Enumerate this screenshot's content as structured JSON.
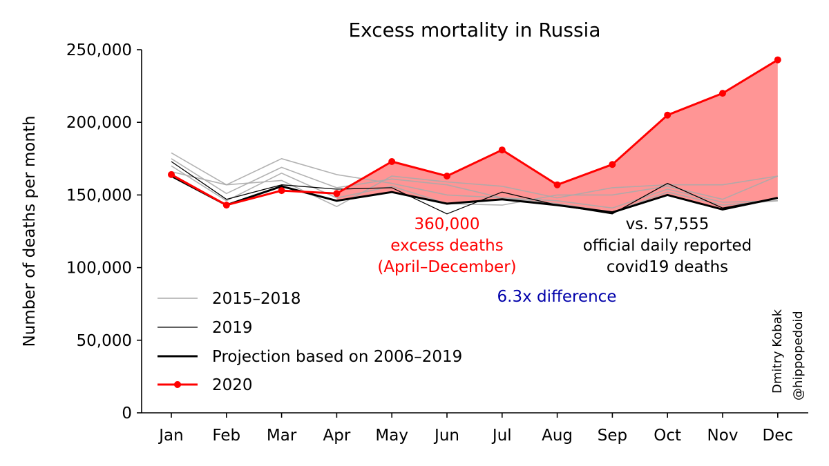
{
  "chart_data": {
    "type": "line",
    "title": "Excess mortality in Russia",
    "xlabel": "",
    "ylabel": "Number of deaths per month",
    "ylim": [
      0,
      250000
    ],
    "y_ticks": [
      0,
      50000,
      100000,
      150000,
      200000,
      250000
    ],
    "y_tick_labels": [
      "0",
      "50,000",
      "100,000",
      "150,000",
      "200,000",
      "250,000"
    ],
    "categories": [
      "Jan",
      "Feb",
      "Mar",
      "Apr",
      "May",
      "Jun",
      "Jul",
      "Aug",
      "Sep",
      "Oct",
      "Nov",
      "Dec"
    ],
    "grid": false,
    "legend_position": "lower-left",
    "legend": [
      "2015–2018",
      "2019",
      "Projection based on 2006–2019",
      "2020"
    ],
    "series": [
      {
        "name": "2015–2018",
        "style": "gray-thin",
        "values": [
          179000,
          157000,
          175000,
          164000,
          158000,
          150000,
          148000,
          146000,
          141000,
          154000,
          145000,
          146000
        ]
      },
      {
        "name": "2015–2018",
        "style": "gray-thin",
        "values": [
          175000,
          151000,
          169000,
          155000,
          161000,
          157000,
          148000,
          144000,
          138000,
          152000,
          143000,
          146000
        ]
      },
      {
        "name": "2015–2018",
        "style": "gray-thin",
        "values": [
          170000,
          146000,
          165000,
          148000,
          156000,
          144000,
          143000,
          150000,
          150000,
          156000,
          147000,
          163000
        ]
      },
      {
        "name": "2015–2018",
        "style": "gray-thin",
        "values": [
          166000,
          157000,
          160000,
          142000,
          163000,
          159000,
          156000,
          148000,
          155000,
          157000,
          157000,
          163000
        ]
      },
      {
        "name": "2019",
        "style": "black-thin",
        "values": [
          173000,
          147000,
          157000,
          154000,
          155000,
          137000,
          152000,
          143000,
          137000,
          158000,
          141000,
          148000
        ]
      },
      {
        "name": "Projection based on 2006–2019",
        "style": "black-thick",
        "values": [
          163000,
          143000,
          156000,
          146000,
          152000,
          144000,
          147000,
          143000,
          138000,
          150000,
          140000,
          148000
        ]
      },
      {
        "name": "2020",
        "style": "red-markers",
        "values": [
          164000,
          143000,
          153000,
          151000,
          173000,
          163000,
          181000,
          157000,
          171000,
          205000,
          220000,
          243000
        ]
      }
    ],
    "excess_fill": {
      "color": "#ff9595",
      "from_month": "Apr",
      "to_month": "Dec"
    },
    "annotations": {
      "excess": [
        "360,000",
        "excess deaths",
        "(April–December)"
      ],
      "official": [
        "vs. 57,555",
        "official daily reported",
        "covid19 deaths"
      ],
      "ratio": "6.3x difference"
    },
    "colors": {
      "red": "#ff0000",
      "gray": "#aaaaaa",
      "black": "#000000",
      "ratio_blue": "#0000aa"
    }
  },
  "credit": [
    "Dmitry Kobak",
    "@hippopedoid"
  ]
}
